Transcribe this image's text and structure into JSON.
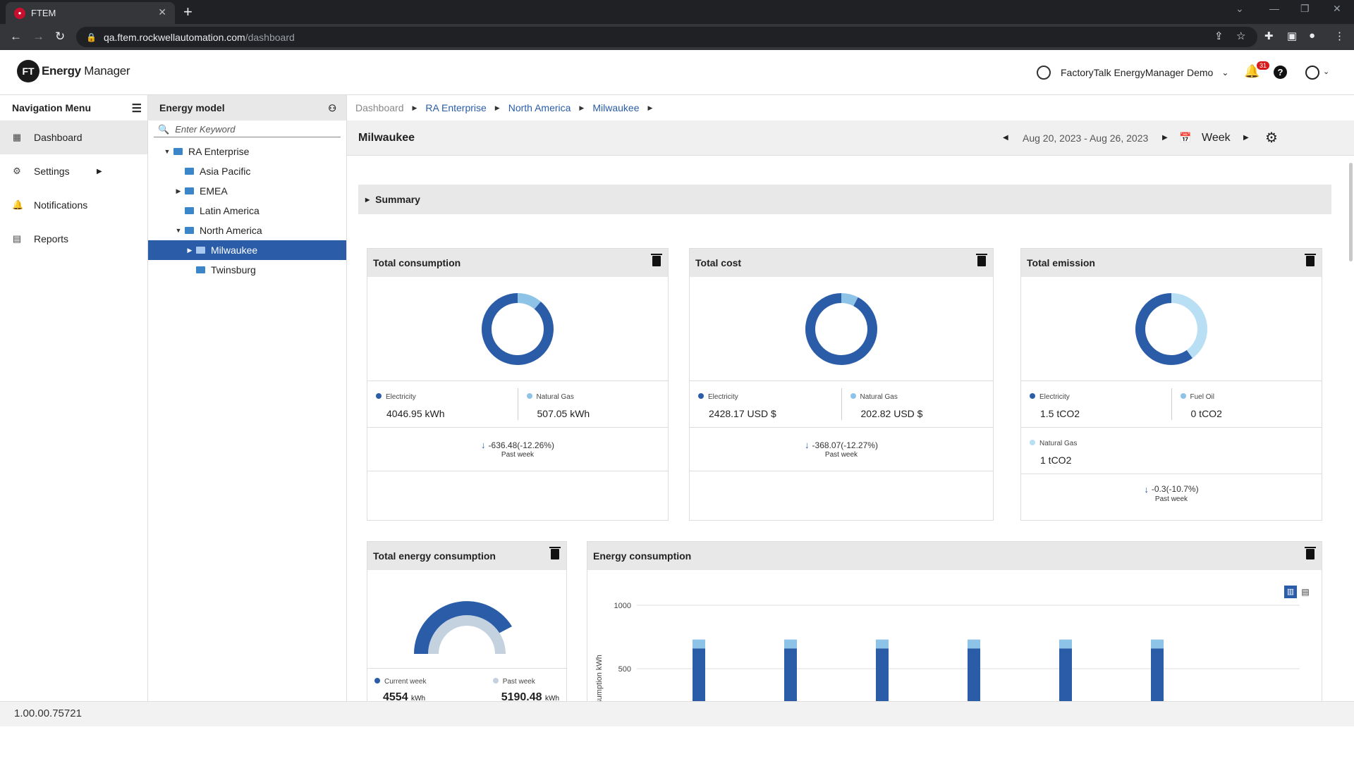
{
  "browser": {
    "tab_title": "FTEM",
    "url_host": "qa.ftem.rockwellautomation.com",
    "url_path": "/dashboard"
  },
  "header": {
    "logo_badge": "FT",
    "logo_bold": "Energy",
    "logo_text": " Manager",
    "tenant": "FactoryTalk EnergyManager Demo",
    "notification_count": "31"
  },
  "nav": {
    "title": "Navigation Menu",
    "items": [
      {
        "label": "Dashboard",
        "icon": "dashboard-icon"
      },
      {
        "label": "Settings",
        "icon": "gear-icon"
      },
      {
        "label": "Notifications",
        "icon": "bell-icon"
      },
      {
        "label": "Reports",
        "icon": "report-icon"
      }
    ]
  },
  "energy_model": {
    "title": "Energy model",
    "search_placeholder": "Enter Keyword",
    "tree": [
      "RA Enterprise",
      "Asia Pacific",
      "EMEA",
      "Latin America",
      "North America",
      "Milwaukee",
      "Twinsburg"
    ]
  },
  "breadcrumb": [
    "Dashboard",
    "RA Enterprise",
    "North America",
    "Milwaukee"
  ],
  "page": {
    "title": "Milwaukee",
    "date_range": "Aug 20, 2023 - Aug 26, 2023",
    "period": "Week",
    "summary": "Summary"
  },
  "colors": {
    "dark_blue": "#2a5ca8",
    "light_blue": "#8ec3e8",
    "pale_blue": "#b9dff5"
  },
  "cards": {
    "consumption": {
      "title": "Total consumption",
      "legend": [
        {
          "name": "Electricity",
          "value": "4046.95 kWh"
        },
        {
          "name": "Natural Gas",
          "value": "507.05 kWh"
        }
      ],
      "delta": "-636.48(-12.26%)",
      "delta_label": "Past week"
    },
    "cost": {
      "title": "Total cost",
      "legend": [
        {
          "name": "Electricity",
          "value": "2428.17 USD $"
        },
        {
          "name": "Natural Gas",
          "value": "202.82 USD $"
        }
      ],
      "delta": "-368.07(-12.27%)",
      "delta_label": "Past week"
    },
    "emission": {
      "title": "Total emission",
      "legend": [
        {
          "name": "Electricity",
          "value": "1.5 tCO2"
        },
        {
          "name": "Fuel Oil",
          "value": "0 tCO2"
        },
        {
          "name": "Natural Gas",
          "value": "1 tCO2"
        }
      ],
      "delta": "-0.3(-10.7%)",
      "delta_label": "Past week"
    },
    "total_energy": {
      "title": "Total energy consumption",
      "current_label": "Current week",
      "current_value": "4554",
      "current_unit": "kWh",
      "past_label": "Past week",
      "past_value": "5190.48",
      "past_unit": "kWh"
    },
    "energy_chart_title": "Energy consumption"
  },
  "chart_data": [
    {
      "type": "pie",
      "title": "Total consumption",
      "categories": [
        "Electricity",
        "Natural Gas"
      ],
      "values": [
        4046.95,
        507.05
      ]
    },
    {
      "type": "pie",
      "title": "Total cost",
      "categories": [
        "Electricity",
        "Natural Gas"
      ],
      "values": [
        2428.17,
        202.82
      ]
    },
    {
      "type": "pie",
      "title": "Total emission",
      "categories": [
        "Electricity",
        "Fuel Oil",
        "Natural Gas"
      ],
      "values": [
        1.5,
        0,
        1
      ]
    },
    {
      "type": "bar",
      "title": "Energy consumption",
      "ylabel": "Consumption kWh",
      "yticks": [
        500,
        1000
      ],
      "ylim": [
        0,
        1100
      ],
      "stacked": true,
      "series": [
        {
          "values": [
            660,
            660,
            660,
            660,
            660,
            660
          ]
        },
        {
          "values": [
            70,
            70,
            70,
            70,
            70,
            70
          ]
        }
      ]
    }
  ]
}
